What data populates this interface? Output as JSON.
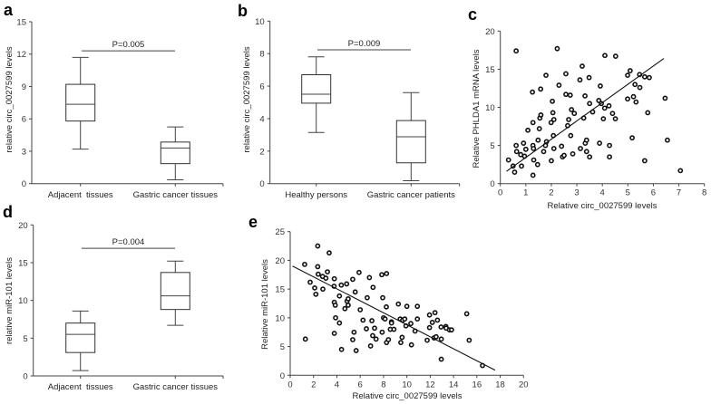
{
  "chart_data": [
    {
      "panel": "a",
      "type": "box",
      "ylabel": "relative circ_0027599 levels",
      "ylim": [
        0,
        15
      ],
      "yticks": [
        0,
        3,
        6,
        9,
        12,
        15
      ],
      "categories": [
        "Adjacent  tissues",
        "Gastric cancer tissues"
      ],
      "boxes": [
        {
          "min": 3.2,
          "q1": 5.8,
          "median": 7.35,
          "q3": 9.2,
          "max": 11.7
        },
        {
          "min": 0.35,
          "q1": 1.85,
          "median": 3.3,
          "q3": 3.85,
          "max": 5.25
        }
      ],
      "annotation": {
        "text": "P=0.005",
        "y": 12.3
      }
    },
    {
      "panel": "b",
      "type": "box",
      "ylabel": "relative circ_0027599 levels",
      "ylim": [
        0,
        10
      ],
      "yticks": [
        0,
        2,
        4,
        6,
        8,
        10
      ],
      "categories": [
        "Healthy persons",
        "Gastric cancer patients"
      ],
      "boxes": [
        {
          "min": 3.15,
          "q1": 4.95,
          "median": 5.5,
          "q3": 6.7,
          "max": 7.8
        },
        {
          "min": 0.18,
          "q1": 1.28,
          "median": 2.88,
          "q3": 3.88,
          "max": 5.6
        }
      ],
      "annotation": {
        "text": "P=0.009",
        "y": 8.23
      }
    },
    {
      "panel": "c",
      "type": "scatter",
      "xlabel": "Relative circ_0027599 levels",
      "ylabel": "Relative PHLDA1 mRNA levels",
      "xlim": [
        0,
        8
      ],
      "ylim": [
        0,
        20
      ],
      "xticks": [
        0,
        1,
        2,
        3,
        4,
        5,
        6,
        7,
        8
      ],
      "yticks": [
        0,
        5,
        10,
        15,
        20
      ],
      "fit": {
        "x": [
          0.24,
          6.41
        ],
        "y": [
          1.6,
          16.4
        ]
      },
      "points": [
        [
          0.32,
          3.1
        ],
        [
          0.5,
          2.3
        ],
        [
          0.56,
          1.5
        ],
        [
          0.62,
          17.4
        ],
        [
          0.62,
          5.0
        ],
        [
          0.64,
          4.2
        ],
        [
          0.8,
          3.8
        ],
        [
          0.83,
          2.3
        ],
        [
          0.91,
          5.3
        ],
        [
          0.95,
          3.6
        ],
        [
          1.0,
          4.5
        ],
        [
          1.08,
          7.0
        ],
        [
          1.26,
          12.0
        ],
        [
          1.28,
          8.0
        ],
        [
          1.28,
          5.0
        ],
        [
          1.3,
          4.6
        ],
        [
          1.31,
          3.1
        ],
        [
          1.28,
          1.1
        ],
        [
          1.46,
          2.5
        ],
        [
          1.48,
          5.7
        ],
        [
          1.53,
          7.2
        ],
        [
          1.55,
          8.6
        ],
        [
          1.59,
          9.0
        ],
        [
          1.58,
          12.4
        ],
        [
          1.7,
          4.2
        ],
        [
          1.77,
          5.0
        ],
        [
          1.81,
          5.5
        ],
        [
          1.79,
          14.2
        ],
        [
          2.0,
          3.0
        ],
        [
          1.99,
          8.0
        ],
        [
          2.04,
          10.8
        ],
        [
          2.06,
          9.3
        ],
        [
          2.1,
          8.4
        ],
        [
          2.08,
          6.3
        ],
        [
          2.1,
          4.6
        ],
        [
          2.23,
          17.7
        ],
        [
          2.3,
          12.9
        ],
        [
          2.4,
          4.9
        ],
        [
          2.44,
          3.5
        ],
        [
          2.5,
          3.7
        ],
        [
          2.57,
          14.4
        ],
        [
          2.57,
          11.7
        ],
        [
          2.74,
          11.6
        ],
        [
          2.64,
          7.6
        ],
        [
          2.68,
          8.4
        ],
        [
          2.79,
          9.7
        ],
        [
          2.76,
          6.3
        ],
        [
          2.84,
          3.9
        ],
        [
          2.9,
          9.2
        ],
        [
          3.12,
          13.6
        ],
        [
          3.14,
          4.6
        ],
        [
          3.21,
          15.4
        ],
        [
          3.27,
          8.6
        ],
        [
          3.32,
          11.5
        ],
        [
          3.33,
          5.3
        ],
        [
          3.38,
          5.7
        ],
        [
          3.38,
          4.2
        ],
        [
          3.48,
          13.9
        ],
        [
          3.5,
          10.5
        ],
        [
          3.5,
          3.5
        ],
        [
          3.62,
          9.4
        ],
        [
          3.86,
          10.9
        ],
        [
          3.89,
          5.3
        ],
        [
          3.92,
          12.8
        ],
        [
          3.96,
          10.5
        ],
        [
          4.04,
          8.5
        ],
        [
          4.09,
          9.9
        ],
        [
          4.1,
          16.8
        ],
        [
          4.26,
          10.2
        ],
        [
          4.28,
          5.0
        ],
        [
          4.28,
          3.5
        ],
        [
          4.4,
          9.2
        ],
        [
          4.51,
          8.5
        ],
        [
          4.52,
          16.7
        ],
        [
          4.99,
          14.2
        ],
        [
          4.99,
          11.1
        ],
        [
          5.09,
          14.8
        ],
        [
          5.17,
          6.0
        ],
        [
          5.22,
          11.4
        ],
        [
          5.28,
          13.0
        ],
        [
          5.32,
          10.7
        ],
        [
          5.46,
          14.3
        ],
        [
          5.47,
          12.6
        ],
        [
          5.66,
          14.0
        ],
        [
          5.66,
          3.0
        ],
        [
          5.78,
          9.3
        ],
        [
          5.84,
          13.9
        ],
        [
          6.46,
          11.2
        ],
        [
          6.55,
          5.7
        ],
        [
          7.06,
          1.7
        ]
      ]
    },
    {
      "panel": "d",
      "type": "box",
      "ylabel": "relative miR-101 levels",
      "ylim": [
        0,
        20
      ],
      "yticks": [
        0,
        5,
        10,
        15,
        20
      ],
      "categories": [
        "Adjacent  tissues",
        "Gastric cancer tissues"
      ],
      "boxes": [
        {
          "min": 0.7,
          "q1": 3.1,
          "median": 5.5,
          "q3": 7.0,
          "max": 8.6
        },
        {
          "min": 6.7,
          "q1": 8.8,
          "median": 10.6,
          "q3": 13.7,
          "max": 15.2
        }
      ],
      "annotation": {
        "text": "P=0.004",
        "y": 16.9
      }
    },
    {
      "panel": "e",
      "type": "scatter",
      "xlabel": "Relative circ_0027599 levels",
      "ylabel": "Relative miR-101 levels",
      "xlim": [
        0,
        20
      ],
      "ylim": [
        0,
        25
      ],
      "xticks": [
        0,
        2,
        4,
        6,
        8,
        10,
        12,
        14,
        16,
        18,
        20
      ],
      "yticks": [
        0,
        5,
        10,
        15,
        20,
        25
      ],
      "fit": {
        "x": [
          0.2,
          17.56
        ],
        "y": [
          19.0,
          0.9
        ]
      },
      "points": [
        [
          1.3,
          6.3
        ],
        [
          1.24,
          19.3
        ],
        [
          1.71,
          16.2
        ],
        [
          2.1,
          15.2
        ],
        [
          2.2,
          14.1
        ],
        [
          2.36,
          22.5
        ],
        [
          2.36,
          18.9
        ],
        [
          2.4,
          17.6
        ],
        [
          2.77,
          17.2
        ],
        [
          2.8,
          15.0
        ],
        [
          3.06,
          16.9
        ],
        [
          3.19,
          18.0
        ],
        [
          3.34,
          21.3
        ],
        [
          3.78,
          16.8
        ],
        [
          3.76,
          15.5
        ],
        [
          3.78,
          12.7
        ],
        [
          3.86,
          12.2
        ],
        [
          3.78,
          7.3
        ],
        [
          3.89,
          10.0
        ],
        [
          4.22,
          13.8
        ],
        [
          4.22,
          9.1
        ],
        [
          4.38,
          15.7
        ],
        [
          4.4,
          4.5
        ],
        [
          4.69,
          11.6
        ],
        [
          4.84,
          15.9
        ],
        [
          4.87,
          12.9
        ],
        [
          4.97,
          13.3
        ],
        [
          4.97,
          12.2
        ],
        [
          5.36,
          16.7
        ],
        [
          5.36,
          6.2
        ],
        [
          5.47,
          7.5
        ],
        [
          5.57,
          14.5
        ],
        [
          5.65,
          4.3
        ],
        [
          5.9,
          17.9
        ],
        [
          6.0,
          11.4
        ],
        [
          6.24,
          9.6
        ],
        [
          6.53,
          8.1
        ],
        [
          6.6,
          13.5
        ],
        [
          6.79,
          17.0
        ],
        [
          6.89,
          5.1
        ],
        [
          7.0,
          9.5
        ],
        [
          7.07,
          6.9
        ],
        [
          7.1,
          15.3
        ],
        [
          7.23,
          8.2
        ],
        [
          7.36,
          6.3
        ],
        [
          7.85,
          17.5
        ],
        [
          7.88,
          7.5
        ],
        [
          7.93,
          13.5
        ],
        [
          8.0,
          10.0
        ],
        [
          8.13,
          9.8
        ],
        [
          8.24,
          11.9
        ],
        [
          8.26,
          5.7
        ],
        [
          8.26,
          17.7
        ],
        [
          8.42,
          6.2
        ],
        [
          8.58,
          8.0
        ],
        [
          8.68,
          9.3
        ],
        [
          8.68,
          9.1
        ],
        [
          8.89,
          8.0
        ],
        [
          9.27,
          12.4
        ],
        [
          9.43,
          9.8
        ],
        [
          9.48,
          5.7
        ],
        [
          9.59,
          6.6
        ],
        [
          9.64,
          9.6
        ],
        [
          9.82,
          9.8
        ],
        [
          9.92,
          8.6
        ],
        [
          10.0,
          12.0
        ],
        [
          10.34,
          9.0
        ],
        [
          10.39,
          5.3
        ],
        [
          10.7,
          7.7
        ],
        [
          10.9,
          9.8
        ],
        [
          10.9,
          12.0
        ],
        [
          11.74,
          6.1
        ],
        [
          11.94,
          10.5
        ],
        [
          11.94,
          8.3
        ],
        [
          12.18,
          9.2
        ],
        [
          12.33,
          6.5
        ],
        [
          12.41,
          10.9
        ],
        [
          12.51,
          6.7
        ],
        [
          12.62,
          9.6
        ],
        [
          12.93,
          8.4
        ],
        [
          12.95,
          6.3
        ],
        [
          12.95,
          2.8
        ],
        [
          13.34,
          8.5
        ],
        [
          13.37,
          8.2
        ],
        [
          13.65,
          7.9
        ],
        [
          13.83,
          7.9
        ],
        [
          15.13,
          10.7
        ],
        [
          15.34,
          6.1
        ],
        [
          16.48,
          1.7
        ]
      ]
    }
  ]
}
